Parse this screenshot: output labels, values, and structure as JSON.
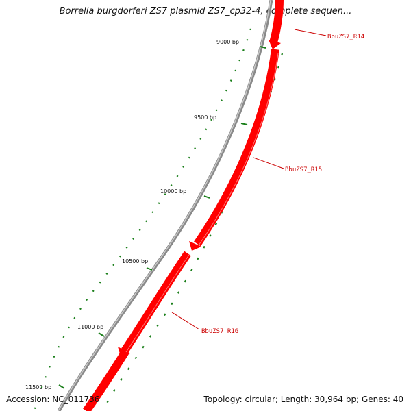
{
  "title": "Borrelia burgdorferi ZS7 plasmid ZS7_cp32-4, complete sequen...",
  "accession": "Accession: NC_011736",
  "topology": "Topology: circular; Length: 30,964 bp; Genes: 40",
  "colors": {
    "backbone": "#8a8a8a",
    "gene_fill": "#ff0000",
    "gene_label": "#cc0000",
    "gc_skew": "#1a7f1a",
    "text": "#111111"
  },
  "ruler": {
    "ticks": [
      {
        "label": "9000 bp"
      },
      {
        "label": "9500 bp"
      },
      {
        "label": "10000 bp"
      },
      {
        "label": "10500 bp"
      },
      {
        "label": "11000 bp"
      },
      {
        "label": "11500 bp"
      }
    ]
  },
  "genes": [
    {
      "name": "BbuZS7_R14"
    },
    {
      "name": "BbuZS7_R15"
    },
    {
      "name": "BbuZS7_R16"
    }
  ]
}
